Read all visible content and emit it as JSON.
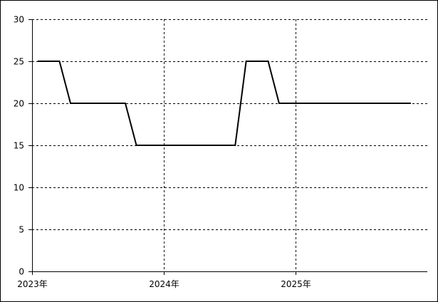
{
  "chart_data": {
    "type": "line",
    "x": [
      2023.042,
      2023.208,
      2023.292,
      2023.708,
      2023.792,
      2024.542,
      2024.625,
      2024.792,
      2024.875,
      2025.875
    ],
    "series": [
      {
        "color": "#000000",
        "values": [
          25,
          25,
          20,
          20,
          15,
          15,
          25,
          25,
          20,
          20
        ]
      }
    ],
    "xlim": [
      2023,
      2026
    ],
    "xticks": [
      {
        "value": 2023,
        "label": "2023年"
      },
      {
        "value": 2024,
        "label": "2024年"
      },
      {
        "value": 2025,
        "label": "2025年"
      }
    ],
    "ylim": [
      0,
      30
    ],
    "yticks": [
      0,
      5,
      10,
      15,
      20,
      25,
      30
    ],
    "grid": true
  }
}
